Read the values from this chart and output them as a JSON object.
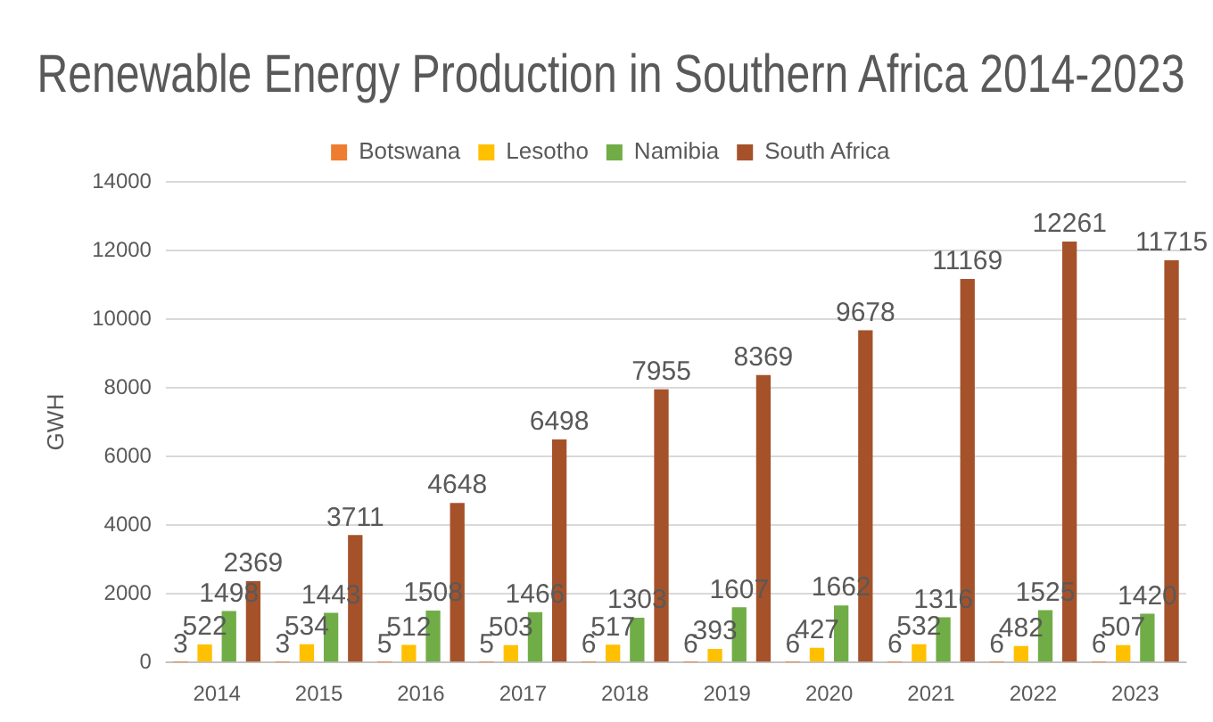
{
  "chart_data": {
    "type": "bar",
    "title": "Renewable Energy Production in Southern Africa 2014-2023",
    "ylabel": "GWH",
    "categories": [
      "2014",
      "2015",
      "2016",
      "2017",
      "2018",
      "2019",
      "2020",
      "2021",
      "2022",
      "2023"
    ],
    "series": [
      {
        "name": "Botswana",
        "color": "#ed7d31",
        "values": [
          3,
          3,
          5,
          5,
          6,
          6,
          6,
          6,
          6,
          6
        ]
      },
      {
        "name": "Lesotho",
        "color": "#ffc000",
        "values": [
          522,
          534,
          512,
          503,
          517,
          393,
          427,
          532,
          482,
          507
        ]
      },
      {
        "name": "Namibia",
        "color": "#70ad47",
        "values": [
          1498,
          1443,
          1508,
          1466,
          1303,
          1607,
          1662,
          1316,
          1525,
          1420
        ]
      },
      {
        "name": "South Africa",
        "color": "#a5522a",
        "values": [
          2369,
          3711,
          4648,
          6498,
          7955,
          8369,
          9678,
          11169,
          12261,
          11715
        ]
      }
    ],
    "ylim": [
      0,
      14000
    ],
    "yticks": [
      0,
      2000,
      4000,
      6000,
      8000,
      10000,
      12000,
      14000
    ],
    "grid": "y",
    "legend": "top",
    "data_labels": true
  }
}
